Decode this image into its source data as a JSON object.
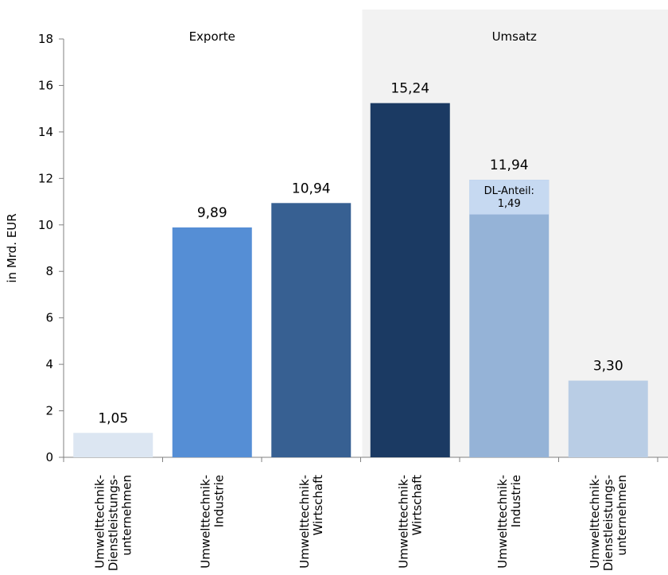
{
  "chart_data": {
    "type": "bar",
    "ylabel": "in Mrd. EUR",
    "ylim": [
      0,
      18
    ],
    "yticks": [
      0,
      2,
      4,
      6,
      8,
      10,
      12,
      14,
      16,
      18
    ],
    "groups": [
      {
        "name": "Exporte",
        "shaded": false
      },
      {
        "name": "Umsatz",
        "shaded": true
      }
    ],
    "bars": [
      {
        "group": "Exporte",
        "category": [
          "Umwelttechnik-",
          "Dienstleistungs-",
          "unternehmen"
        ],
        "value": 1.05,
        "label": "1,05",
        "color": "#dce6f2"
      },
      {
        "group": "Exporte",
        "category": [
          "Umwelttechnik-",
          "Industrie"
        ],
        "value": 9.89,
        "label": "9,89",
        "color": "#558ed5"
      },
      {
        "group": "Exporte",
        "category": [
          "Umwelttechnik-",
          "Wirtschaft"
        ],
        "value": 10.94,
        "label": "10,94",
        "color": "#376092"
      },
      {
        "group": "Umsatz",
        "category": [
          "Umwelttechnik-",
          "Wirtschaft"
        ],
        "value": 15.24,
        "label": "15,24",
        "color": "#1b3a63"
      },
      {
        "group": "Umsatz",
        "category": [
          "Umwelttechnik-",
          "Industrie"
        ],
        "value": 11.94,
        "label": "11,94",
        "color": "#95b3d7",
        "segment": {
          "value": 1.49,
          "text": [
            "DL-Anteil:",
            "1,49"
          ],
          "color": "#c6d9f1"
        }
      },
      {
        "group": "Umsatz",
        "category": [
          "Umwelttechnik-",
          "Dienstleistungs-",
          "unternehmen"
        ],
        "value": 3.3,
        "label": "3,30",
        "color": "#b9cde5"
      }
    ],
    "colors": {
      "shade": "#f2f2f2",
      "axis": "#808080",
      "text": "#000000"
    }
  }
}
